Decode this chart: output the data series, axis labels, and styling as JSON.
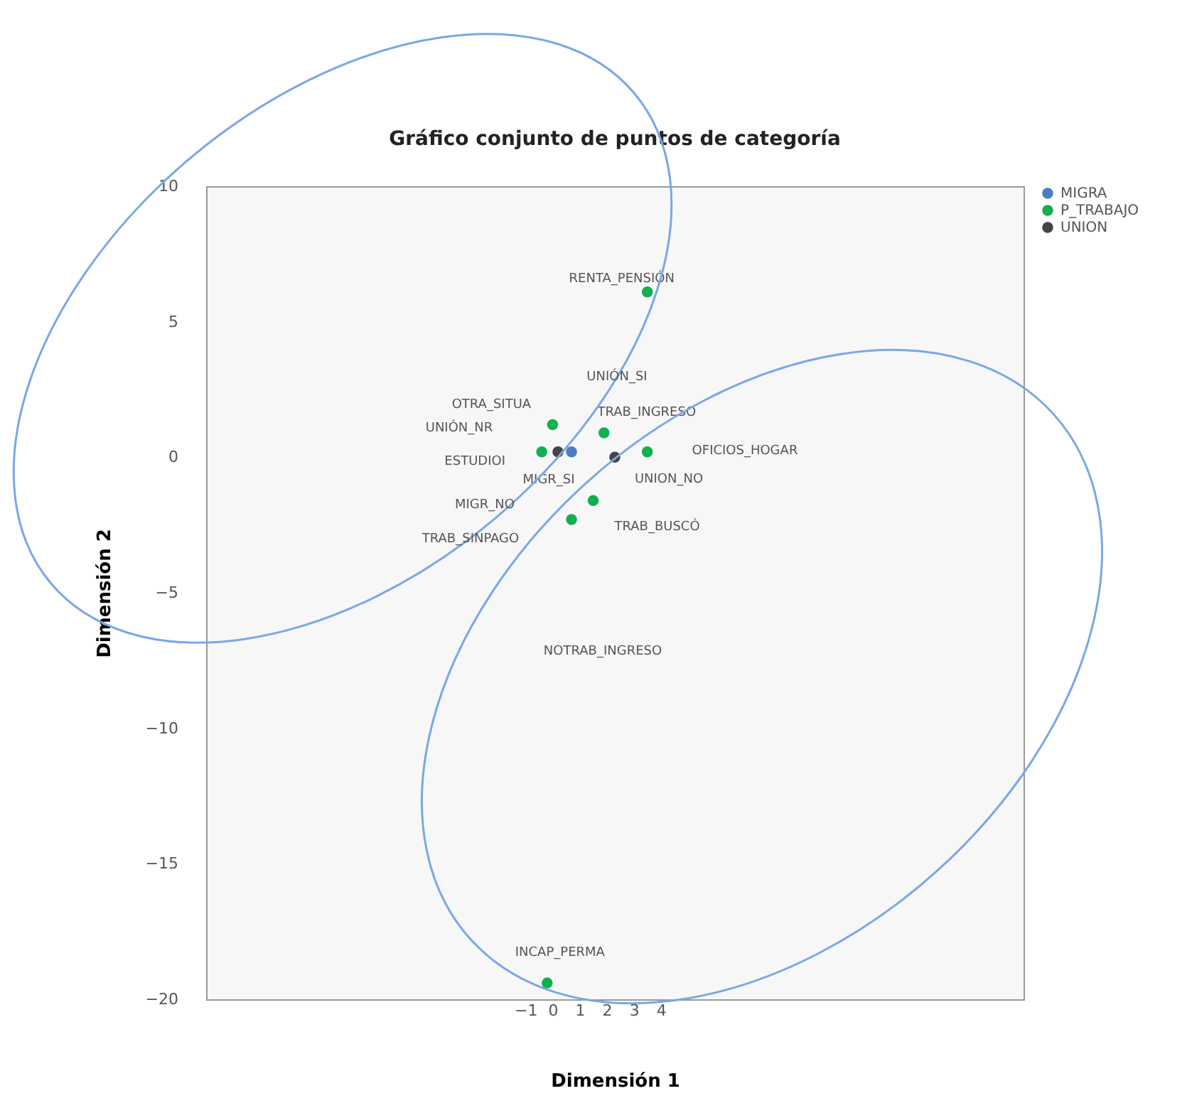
{
  "chart_data": {
    "type": "scatter",
    "title": "Gráfico conjunto de puntos de categoría",
    "xlabel": "Dimensión 1",
    "ylabel": "Dimensión 2",
    "xlim": [
      -12.8,
      17.4
    ],
    "ylim": [
      -20,
      10
    ],
    "xticks": [
      -1,
      0,
      1,
      2,
      3,
      4
    ],
    "yticks": [
      -20,
      -15,
      -10,
      -5,
      0,
      5,
      10
    ],
    "grid": false,
    "legend": "top right",
    "marker": "circle",
    "series": [
      {
        "name": "MIGRA",
        "color": "#4a7ebf",
        "x": [
          0.7
        ],
        "values": [
          0.2
        ]
      },
      {
        "name": "P_TRABAJO",
        "color": "#10b050",
        "x": [
          3.5,
          0,
          1.9,
          -0.4,
          3.5,
          1.5,
          0.7,
          -0.2
        ],
        "values": [
          6.1,
          1.2,
          0.9,
          0.2,
          0.2,
          -1.6,
          -2.3,
          -19.4
        ]
      },
      {
        "name": "UNION",
        "color": "#444444",
        "x": [
          0.2,
          2.3
        ],
        "values": [
          0.2,
          0
        ]
      }
    ],
    "annotations": [
      {
        "text": "RENTA_PENSIÓN",
        "x": 3.5,
        "y": 6.1
      },
      "UNIÓN_SI",
      {
        "text": "OTRA_SITUA",
        "x": 0,
        "y": 1.2
      },
      {
        "text": "TRAB_INGRESO",
        "x": 1.9,
        "y": 0.9
      },
      "UNIÓN_NR",
      "OFICIOS_HOGAR",
      {
        "text": "ESTUDIOI",
        "x": -0.4,
        "y": 0.2
      },
      {
        "text": "MIGR_SI",
        "x": 0.7,
        "y": 0.2
      },
      {
        "text": "UNION_NO",
        "x": 2.3,
        "y": 0
      },
      "MIGR_NO",
      {
        "text": "TRAB_BUSCÓ",
        "x": 1.5,
        "y": -1.6
      },
      "TRAB_SINPAGO",
      "NOTRAB_INGRESO",
      {
        "text": "INCAP_PERMA",
        "x": -0.2,
        "y": -19.4
      }
    ]
  }
}
